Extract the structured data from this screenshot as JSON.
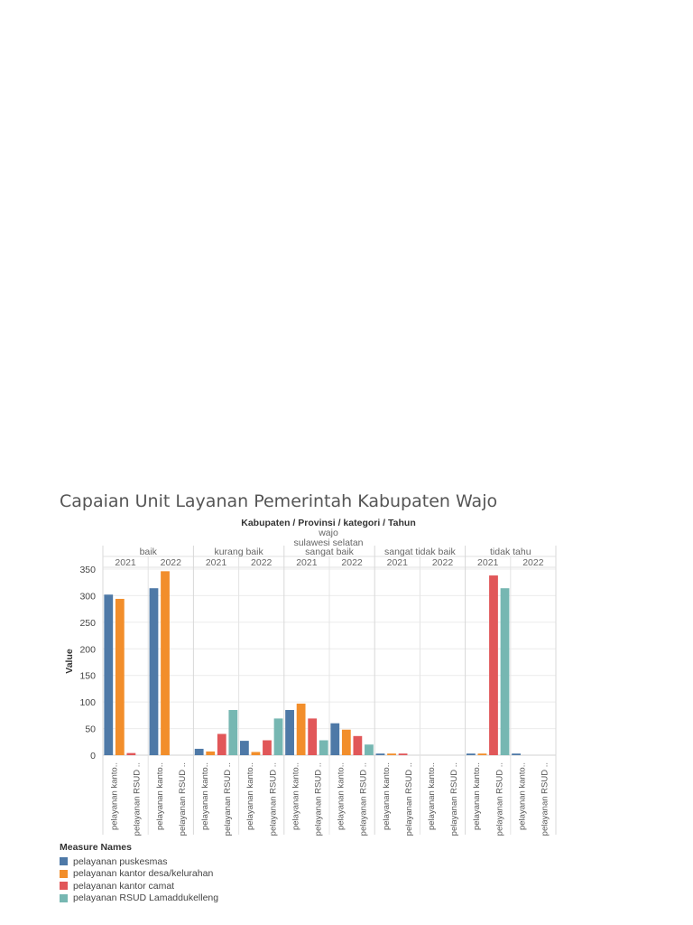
{
  "chart_data": {
    "type": "bar",
    "title": "Capaian Unit Layanan Pemerintah Kabupaten Wajo",
    "header_fields": "Kabupaten / Provinsi / kategori / Tahun",
    "kabupaten": "wajo",
    "provinsi": "sulawesi selatan",
    "ylabel": "Value",
    "ylim": [
      0,
      360
    ],
    "yticks": [
      0,
      50,
      100,
      150,
      200,
      250,
      300,
      350
    ],
    "x_tick_labels": [
      "pelayanan kanto..",
      "pelayanan RSUD .."
    ],
    "groups": [
      {
        "kategori": "baik",
        "tahun": [
          "2021",
          "2022"
        ]
      },
      {
        "kategori": "kurang baik",
        "tahun": [
          "2021",
          "2022"
        ]
      },
      {
        "kategori": "sangat baik",
        "tahun": [
          "2021",
          "2022"
        ]
      },
      {
        "kategori": "sangat tidak baik",
        "tahun": [
          "2021",
          "2022"
        ]
      },
      {
        "kategori": "tidak tahu",
        "tahun": [
          "2021",
          "2022"
        ]
      }
    ],
    "series": [
      {
        "name": "pelayanan puskesmas",
        "color": "#4e79a7",
        "values": [
          302,
          314,
          12,
          27,
          85,
          60,
          3,
          0,
          3,
          3
        ]
      },
      {
        "name": "pelayanan kantor desa/kelurahan",
        "color": "#f28e2b",
        "values": [
          294,
          346,
          7,
          6,
          97,
          48,
          3,
          0,
          3,
          0
        ]
      },
      {
        "name": "pelayanan kantor camat",
        "color": "#e15759",
        "values": [
          4,
          0,
          40,
          28,
          69,
          36,
          3,
          0,
          338,
          0
        ]
      },
      {
        "name": "pelayanan RSUD Lamaddukelleng",
        "color": "#76b7b2",
        "values": [
          0,
          0,
          85,
          69,
          28,
          20,
          0,
          0,
          314,
          0
        ]
      }
    ],
    "legend_title": "Measure Names",
    "legend_position": "bottom-left"
  }
}
